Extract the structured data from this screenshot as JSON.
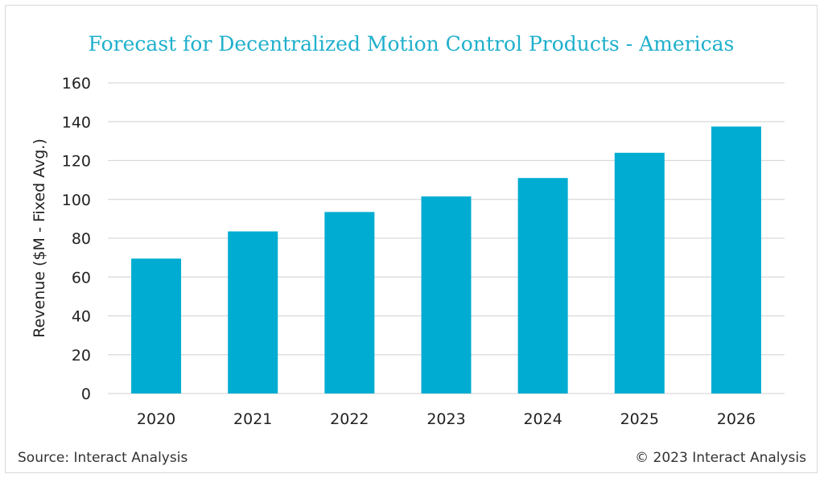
{
  "chart_data": {
    "type": "bar",
    "title": "Forecast for Decentralized Motion Control Products - Americas",
    "xlabel": "",
    "ylabel": "Revenue ($M - Fixed Avg.)",
    "categories": [
      "2020",
      "2021",
      "2022",
      "2023",
      "2024",
      "2025",
      "2026"
    ],
    "values": [
      69.5,
      83.5,
      93.5,
      101.5,
      111,
      124,
      137.5
    ],
    "ylim": [
      0,
      160
    ],
    "yticks": [
      0,
      20,
      40,
      60,
      80,
      100,
      120,
      140,
      160
    ],
    "grid": true,
    "legend": "none",
    "bar_color": "#00acd1"
  },
  "footer": {
    "source": "Source: Interact Analysis",
    "copyright": "© 2023 Interact Analysis"
  }
}
